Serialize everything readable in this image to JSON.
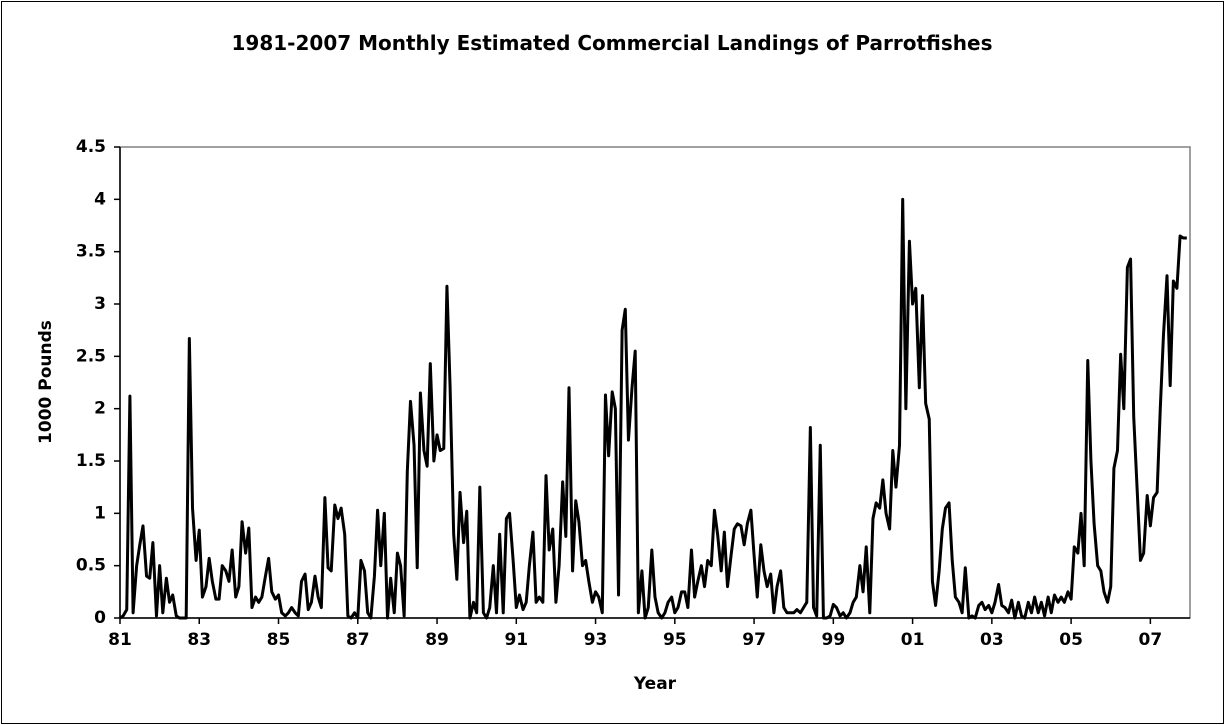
{
  "chart_data": {
    "type": "line",
    "title": "1981-2007 Monthly Estimated Commercial Landings of Parrotfishes",
    "x_label": "Year",
    "y_label": "1000 Pounds",
    "color": "#000000",
    "grid": false,
    "xlim": [
      1981,
      2008
    ],
    "ylim": [
      0,
      4.5
    ],
    "xticks": [
      {
        "value": 1981,
        "label": "81"
      },
      {
        "value": 1983,
        "label": "83"
      },
      {
        "value": 1985,
        "label": "85"
      },
      {
        "value": 1987,
        "label": "87"
      },
      {
        "value": 1989,
        "label": "89"
      },
      {
        "value": 1991,
        "label": "91"
      },
      {
        "value": 1993,
        "label": "93"
      },
      {
        "value": 1995,
        "label": "95"
      },
      {
        "value": 1997,
        "label": "97"
      },
      {
        "value": 1999,
        "label": "99"
      },
      {
        "value": 2001,
        "label": "01"
      },
      {
        "value": 2003,
        "label": "03"
      },
      {
        "value": 2005,
        "label": "05"
      },
      {
        "value": 2007,
        "label": "07"
      }
    ],
    "yticks": [
      0,
      0.5,
      1,
      1.5,
      2,
      2.5,
      3,
      3.5,
      4,
      4.5
    ],
    "x": [
      1981,
      1981.08,
      1981.17,
      1981.25,
      1981.33,
      1981.42,
      1981.5,
      1981.58,
      1981.67,
      1981.75,
      1981.83,
      1981.92,
      1982,
      1982.08,
      1982.17,
      1982.25,
      1982.33,
      1982.42,
      1982.5,
      1982.58,
      1982.67,
      1982.75,
      1982.83,
      1982.92,
      1983,
      1983.08,
      1983.17,
      1983.25,
      1983.33,
      1983.42,
      1983.5,
      1983.58,
      1983.67,
      1983.75,
      1983.83,
      1983.92,
      1984,
      1984.08,
      1984.17,
      1984.25,
      1984.33,
      1984.42,
      1984.5,
      1984.58,
      1984.67,
      1984.75,
      1984.83,
      1984.92,
      1985,
      1985.08,
      1985.17,
      1985.25,
      1985.33,
      1985.42,
      1985.5,
      1985.58,
      1985.67,
      1985.75,
      1985.83,
      1985.92,
      1986,
      1986.08,
      1986.17,
      1986.25,
      1986.33,
      1986.42,
      1986.5,
      1986.58,
      1986.67,
      1986.75,
      1986.83,
      1986.92,
      1987,
      1987.08,
      1987.17,
      1987.25,
      1987.33,
      1987.42,
      1987.5,
      1987.58,
      1987.67,
      1987.75,
      1987.83,
      1987.92,
      1988,
      1988.08,
      1988.17,
      1988.25,
      1988.33,
      1988.42,
      1988.5,
      1988.58,
      1988.67,
      1988.75,
      1988.83,
      1988.92,
      1989,
      1989.08,
      1989.17,
      1989.25,
      1989.33,
      1989.42,
      1989.5,
      1989.58,
      1989.67,
      1989.75,
      1989.83,
      1989.92,
      1990,
      1990.08,
      1990.17,
      1990.25,
      1990.33,
      1990.42,
      1990.5,
      1990.58,
      1990.67,
      1990.75,
      1990.83,
      1990.92,
      1991,
      1991.08,
      1991.17,
      1991.25,
      1991.33,
      1991.42,
      1991.5,
      1991.58,
      1991.67,
      1991.75,
      1991.83,
      1991.92,
      1992,
      1992.08,
      1992.17,
      1992.25,
      1992.33,
      1992.42,
      1992.5,
      1992.58,
      1992.67,
      1992.75,
      1992.83,
      1992.92,
      1993,
      1993.08,
      1993.17,
      1993.25,
      1993.33,
      1993.42,
      1993.5,
      1993.58,
      1993.67,
      1993.75,
      1993.83,
      1993.92,
      1994,
      1994.08,
      1994.17,
      1994.25,
      1994.33,
      1994.42,
      1994.5,
      1994.58,
      1994.67,
      1994.75,
      1994.83,
      1994.92,
      1995,
      1995.08,
      1995.17,
      1995.25,
      1995.33,
      1995.42,
      1995.5,
      1995.58,
      1995.67,
      1995.75,
      1995.83,
      1995.92,
      1996,
      1996.08,
      1996.17,
      1996.25,
      1996.33,
      1996.42,
      1996.5,
      1996.58,
      1996.67,
      1996.75,
      1996.83,
      1996.92,
      1997,
      1997.08,
      1997.17,
      1997.25,
      1997.33,
      1997.42,
      1997.5,
      1997.58,
      1997.67,
      1997.75,
      1997.83,
      1997.92,
      1998,
      1998.08,
      1998.17,
      1998.25,
      1998.33,
      1998.42,
      1998.5,
      1998.58,
      1998.67,
      1998.75,
      1998.83,
      1998.92,
      1999,
      1999.08,
      1999.17,
      1999.25,
      1999.33,
      1999.42,
      1999.5,
      1999.58,
      1999.67,
      1999.75,
      1999.83,
      1999.92,
      2000,
      2000.08,
      2000.17,
      2000.25,
      2000.33,
      2000.42,
      2000.5,
      2000.58,
      2000.67,
      2000.75,
      2000.83,
      2000.92,
      2001,
      2001.08,
      2001.17,
      2001.25,
      2001.33,
      2001.42,
      2001.5,
      2001.58,
      2001.67,
      2001.75,
      2001.83,
      2001.92,
      2002,
      2002.08,
      2002.17,
      2002.25,
      2002.33,
      2002.42,
      2002.5,
      2002.58,
      2002.67,
      2002.75,
      2002.83,
      2002.92,
      2003,
      2003.08,
      2003.17,
      2003.25,
      2003.33,
      2003.42,
      2003.5,
      2003.58,
      2003.67,
      2003.75,
      2003.83,
      2003.92,
      2004,
      2004.08,
      2004.17,
      2004.25,
      2004.33,
      2004.42,
      2004.5,
      2004.58,
      2004.67,
      2004.75,
      2004.83,
      2004.92,
      2005,
      2005.08,
      2005.17,
      2005.25,
      2005.33,
      2005.42,
      2005.5,
      2005.58,
      2005.67,
      2005.75,
      2005.83,
      2005.92,
      2006,
      2006.08,
      2006.17,
      2006.25,
      2006.33,
      2006.42,
      2006.5,
      2006.58,
      2006.67,
      2006.75,
      2006.83,
      2006.92,
      2007,
      2007.08,
      2007.17,
      2007.25,
      2007.33,
      2007.42,
      2007.5,
      2007.58,
      2007.67,
      2007.75,
      2007.83,
      2007.92
    ],
    "values": [
      0,
      0.02,
      0.08,
      2.12,
      0.05,
      0.5,
      0.7,
      0.88,
      0.4,
      0.38,
      0.72,
      0.02,
      0.5,
      0.05,
      0.38,
      0.15,
      0.22,
      0.02,
      0,
      0,
      0,
      2.67,
      1.05,
      0.55,
      0.84,
      0.2,
      0.3,
      0.57,
      0.35,
      0.18,
      0.18,
      0.5,
      0.45,
      0.35,
      0.65,
      0.2,
      0.3,
      0.92,
      0.62,
      0.86,
      0.1,
      0.2,
      0.15,
      0.2,
      0.4,
      0.57,
      0.25,
      0.18,
      0.22,
      0.05,
      0.02,
      0.05,
      0.1,
      0.05,
      0.02,
      0.35,
      0.42,
      0.08,
      0.15,
      0.4,
      0.2,
      0.1,
      1.15,
      0.48,
      0.45,
      1.08,
      0.95,
      1.05,
      0.8,
      0.02,
      0,
      0.05,
      0,
      0.55,
      0.45,
      0.05,
      0,
      0.4,
      1.03,
      0.5,
      1,
      0,
      0.38,
      0.05,
      0.62,
      0.5,
      0.02,
      1.4,
      2.07,
      1.65,
      0.48,
      2.15,
      1.6,
      1.45,
      2.43,
      1.5,
      1.75,
      1.6,
      1.62,
      3.17,
      2.2,
      0.8,
      0.37,
      1.2,
      0.72,
      1.02,
      0,
      0.15,
      0.05,
      1.25,
      0.05,
      0,
      0.1,
      0.5,
      0.05,
      0.8,
      0.05,
      0.95,
      1,
      0.55,
      0.1,
      0.22,
      0.08,
      0.15,
      0.5,
      0.82,
      0.15,
      0.2,
      0.15,
      1.36,
      0.65,
      0.85,
      0.15,
      0.5,
      1.3,
      0.78,
      2.2,
      0.45,
      1.12,
      0.92,
      0.5,
      0.55,
      0.35,
      0.15,
      0.25,
      0.2,
      0.05,
      2.13,
      1.55,
      2.16,
      2,
      0.22,
      2.75,
      2.95,
      1.7,
      2.2,
      2.55,
      0.05,
      0.45,
      0,
      0.1,
      0.65,
      0.2,
      0.05,
      0,
      0.05,
      0.15,
      0.2,
      0.05,
      0.1,
      0.25,
      0.25,
      0.1,
      0.65,
      0.2,
      0.35,
      0.5,
      0.3,
      0.55,
      0.5,
      1.03,
      0.8,
      0.45,
      0.82,
      0.3,
      0.6,
      0.85,
      0.9,
      0.88,
      0.7,
      0.9,
      1.03,
      0.6,
      0.2,
      0.7,
      0.45,
      0.3,
      0.42,
      0.05,
      0.3,
      0.45,
      0.1,
      0.05,
      0.05,
      0.05,
      0.08,
      0.05,
      0.1,
      0.15,
      1.82,
      0.1,
      0.02,
      1.65,
      0,
      0,
      0.02,
      0.13,
      0.1,
      0.02,
      0.05,
      0,
      0.05,
      0.15,
      0.2,
      0.5,
      0.25,
      0.68,
      0.05,
      0.95,
      1.1,
      1.05,
      1.32,
      1,
      0.85,
      1.6,
      1.25,
      1.65,
      4,
      2,
      3.6,
      3,
      3.15,
      2.2,
      3.08,
      2.05,
      1.9,
      0.35,
      0.12,
      0.45,
      0.85,
      1.05,
      1.1,
      0.55,
      0.2,
      0.15,
      0.05,
      0.48,
      0,
      0.02,
      0,
      0.12,
      0.15,
      0.08,
      0.12,
      0.05,
      0.15,
      0.32,
      0.12,
      0.1,
      0.05,
      0.17,
      0,
      0.15,
      0.02,
      0,
      0.15,
      0.05,
      0.2,
      0.05,
      0.15,
      0.02,
      0.2,
      0.05,
      0.22,
      0.15,
      0.2,
      0.15,
      0.25,
      0.18,
      0.68,
      0.62,
      1,
      0.5,
      2.46,
      1.5,
      0.9,
      0.5,
      0.45,
      0.25,
      0.15,
      0.3,
      1.43,
      1.6,
      2.52,
      2,
      3.35,
      3.43,
      1.92,
      1.2,
      0.55,
      0.62,
      1.17,
      0.88,
      1.15,
      1.2,
      2,
      2.7,
      3.27,
      2.22,
      3.22,
      3.15,
      3.65,
      3.63,
      3.63
    ]
  }
}
